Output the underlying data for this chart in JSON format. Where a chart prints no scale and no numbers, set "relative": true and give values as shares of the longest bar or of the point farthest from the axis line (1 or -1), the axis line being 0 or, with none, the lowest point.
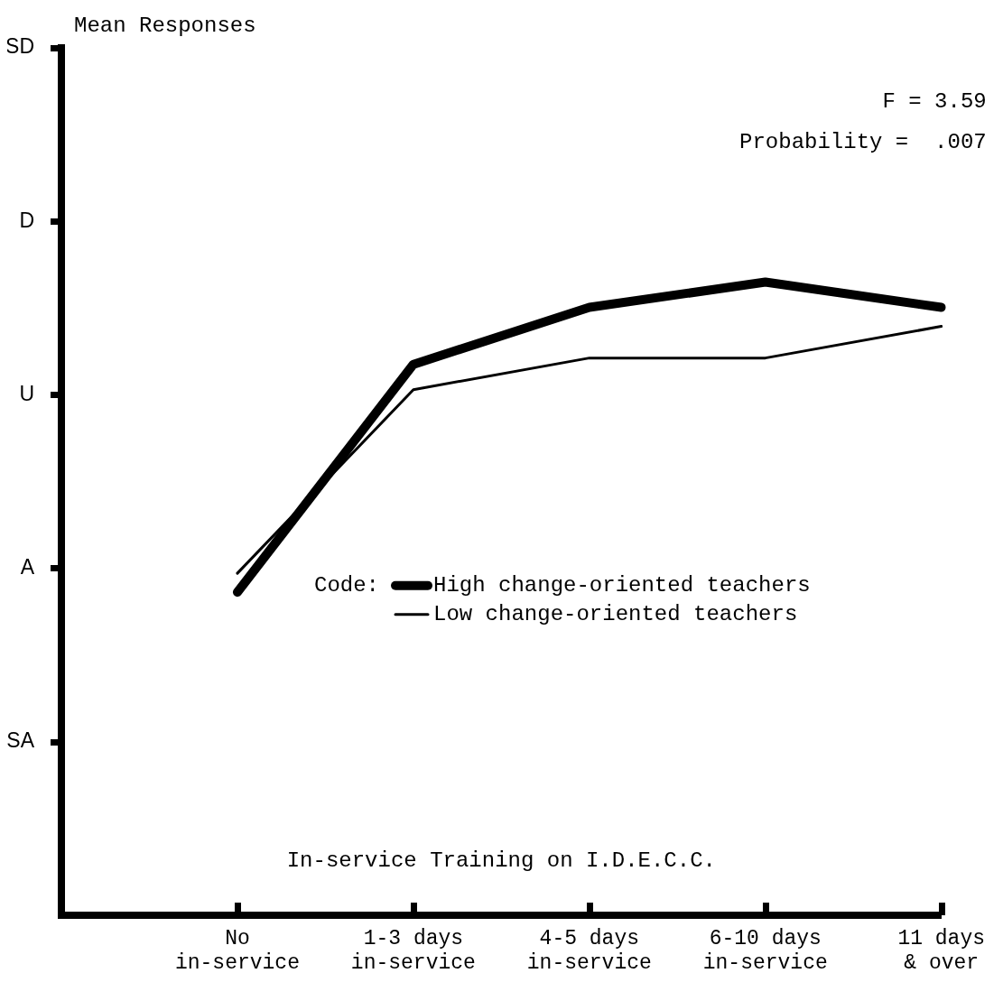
{
  "chart_data": {
    "type": "line",
    "xlabel": "In-service Training on I.D.E.C.C.",
    "legend_title": "Code:",
    "categories": [
      null,
      "No\nin-service",
      "1-3 days\nin-service",
      "4-5 days\nin-service",
      "6-10 days\nin-service",
      "11 days\n& over"
    ],
    "series": [
      {
        "name": "High change-oriented teachers",
        "color": "#000000",
        "values": [
          null,
          0.51,
          0.87,
          0.96,
          1,
          0.96
        ]
      },
      {
        "name": "Low change-oriented teachers",
        "color": "#000000",
        "values": [
          null,
          0.54,
          0.83,
          0.88,
          0.88,
          0.93
        ]
      }
    ],
    "relative": true,
    "grid": "x",
    "legend": "right",
    "marker": "none",
    "line_style": "solid",
    "annotations": [
      "Mean Responses",
      "F = 3.59",
      "Probability =  .007",
      "SD",
      "D",
      "U",
      "A",
      "SA"
    ]
  }
}
